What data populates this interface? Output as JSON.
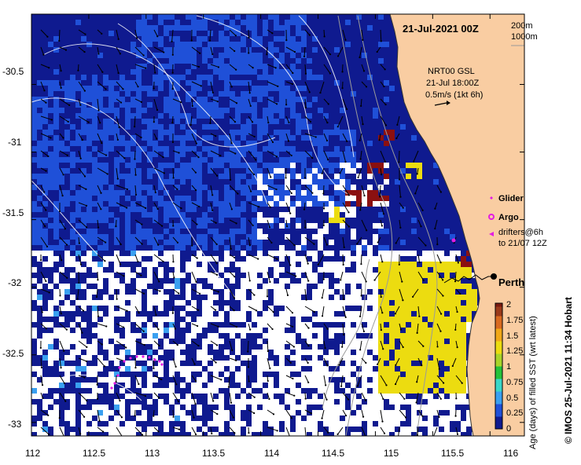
{
  "map": {
    "title": "21-Jul-2021 00Z",
    "depth_contours": [
      "200m",
      "1000m"
    ],
    "current_source": "NRT00 GSL",
    "current_time": "21-Jul 18:00Z",
    "current_scale": "0.5m/s (1kt 6h)",
    "place_label": "Perth",
    "legend": {
      "glider": "Glider",
      "argo": "Argo",
      "drifters_line1": "drifters@6h",
      "drifters_line2": "to 21/07 12Z"
    },
    "colorbar": {
      "label": "Age (days) of filled SST (wrt latest)",
      "ticks": [
        "2",
        "1.75",
        "1.5",
        "1.25",
        "1",
        "0.75",
        "0.5",
        "0.25",
        "0"
      ]
    },
    "credit": "© IMOS 25-Jul-2021 11:34 Hobart",
    "axes": {
      "lon_ticks": [
        "112",
        "112.5",
        "113",
        "113.5",
        "114",
        "114.5",
        "115",
        "115.5",
        "116"
      ],
      "lat_ticks": [
        "-30.5",
        "-31",
        "-31.5",
        "-32",
        "-32.5",
        "-33"
      ],
      "lon_range": [
        112,
        116.3
      ],
      "lat_range": [
        -33.1,
        -29.98
      ]
    },
    "colors": {
      "land": "#f9cda2",
      "ocean_dark": "#0f1a8f",
      "ocean_mid": "#1f50d8",
      "ocean_light": "#3aa0f0",
      "cloud_white": "#ffffff",
      "yellow": "#ecdc10",
      "dark_red": "#8b1010",
      "glider": "#e31ce3"
    }
  }
}
